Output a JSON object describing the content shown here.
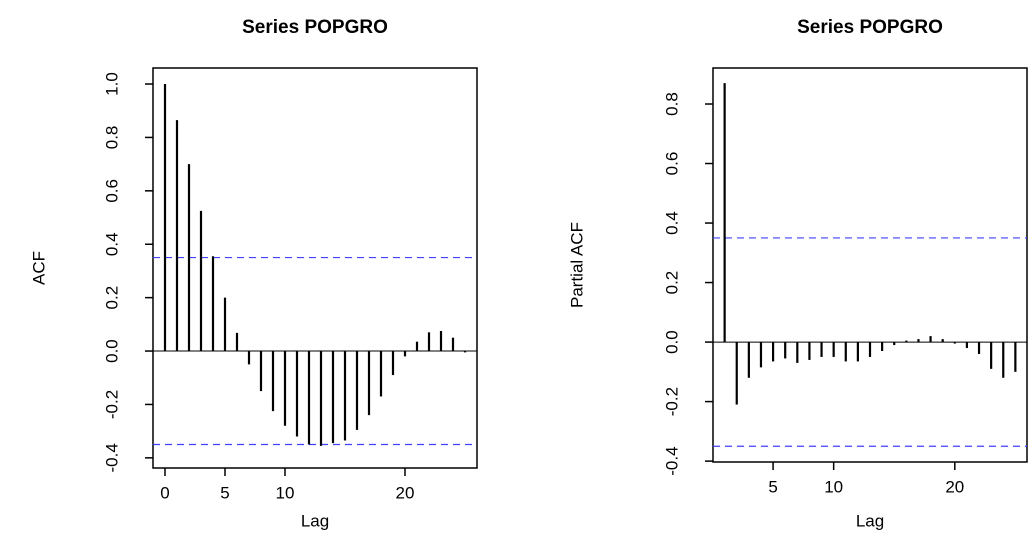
{
  "chart_data": [
    {
      "type": "acf",
      "title": "Series  POPGRO",
      "xlabel": "Lag",
      "ylabel": "ACF",
      "x": [
        0,
        1,
        2,
        3,
        4,
        5,
        6,
        7,
        8,
        9,
        10,
        11,
        12,
        13,
        14,
        15,
        16,
        17,
        18,
        19,
        20,
        21,
        22,
        23,
        24,
        25
      ],
      "values": [
        1.0,
        0.865,
        0.7,
        0.525,
        0.355,
        0.2,
        0.068,
        -0.05,
        -0.15,
        -0.225,
        -0.28,
        -0.32,
        -0.35,
        -0.355,
        -0.345,
        -0.335,
        -0.295,
        -0.24,
        -0.17,
        -0.09,
        -0.02,
        0.035,
        0.07,
        0.075,
        0.05,
        -0.005
      ],
      "color": "#000000",
      "conf_lines": [
        0.35,
        -0.35
      ],
      "conf_color": "#4040ff",
      "xlim": [
        -1,
        26
      ],
      "xticks": [
        0,
        5,
        10,
        20
      ],
      "ylim": [
        -0.438,
        1.06
      ],
      "yticks": [
        {
          "value": -0.4,
          "label": "-0.4"
        },
        -0.2,
        {
          "value": 0,
          "label": "0.0"
        },
        0.2,
        0.4,
        0.6,
        0.8,
        {
          "value": 1,
          "label": "1.0"
        }
      ]
    },
    {
      "type": "acf",
      "title": "Series  POPGRO",
      "xlabel": "Lag",
      "ylabel": "Partial ACF",
      "x": [
        1,
        2,
        3,
        4,
        5,
        6,
        7,
        8,
        9,
        10,
        11,
        12,
        13,
        14,
        15,
        16,
        17,
        18,
        19,
        20,
        21,
        22,
        23,
        24,
        25
      ],
      "values": [
        0.87,
        -0.21,
        -0.12,
        -0.085,
        -0.065,
        -0.055,
        -0.07,
        -0.06,
        -0.05,
        -0.05,
        -0.065,
        -0.065,
        -0.05,
        -0.03,
        -0.01,
        0.005,
        0.01,
        0.02,
        0.01,
        -0.005,
        -0.02,
        -0.04,
        -0.09,
        -0.12,
        -0.1
      ],
      "color": "#000000",
      "conf_lines": [
        0.35,
        -0.35
      ],
      "conf_color": "#4040ff",
      "xlim": [
        0.04,
        25.96
      ],
      "xticks": [
        5,
        10,
        20
      ],
      "ylim": [
        -0.403,
        0.921
      ],
      "yticks": [
        {
          "value": -0.4,
          "label": "-0.4"
        },
        -0.2,
        {
          "value": 0,
          "label": "0.0"
        },
        0.2,
        0.4,
        0.6,
        0.8
      ]
    }
  ]
}
